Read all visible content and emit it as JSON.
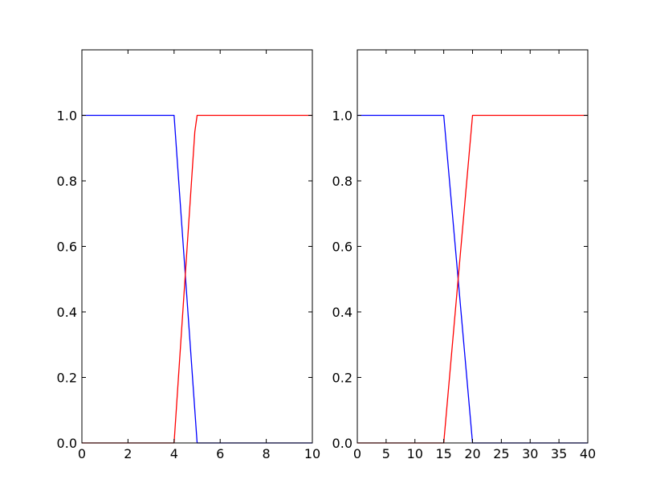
{
  "chart_data": [
    {
      "type": "line",
      "xlim": [
        0,
        10
      ],
      "ylim": [
        0,
        1.2
      ],
      "xticks": [
        "0",
        "2",
        "4",
        "6",
        "8",
        "10"
      ],
      "xtick_values": [
        0,
        2,
        4,
        6,
        8,
        10
      ],
      "yticks": [
        "0.0",
        "0.2",
        "0.4",
        "0.6",
        "0.8",
        "1.0"
      ],
      "ytick_values": [
        0,
        0.2,
        0.4,
        0.6,
        0.8,
        1.0
      ],
      "grid": false,
      "series": [
        {
          "color": "#0000ff",
          "x": [
            0,
            4,
            5,
            10
          ],
          "y": [
            1,
            1,
            0,
            0
          ]
        },
        {
          "color": "#ff0000",
          "x": [
            0,
            4,
            4.9,
            5,
            10
          ],
          "y": [
            0,
            0,
            0.95,
            1,
            1
          ]
        }
      ]
    },
    {
      "type": "line",
      "xlim": [
        0,
        40
      ],
      "ylim": [
        0,
        1.2
      ],
      "xticks": [
        "0",
        "5",
        "10",
        "15",
        "20",
        "25",
        "30",
        "35",
        "40"
      ],
      "xtick_values": [
        0,
        5,
        10,
        15,
        20,
        25,
        30,
        35,
        40
      ],
      "yticks": [
        "0.0",
        "0.2",
        "0.4",
        "0.6",
        "0.8",
        "1.0"
      ],
      "ytick_values": [
        0,
        0.2,
        0.4,
        0.6,
        0.8,
        1.0
      ],
      "grid": false,
      "series": [
        {
          "color": "#0000ff",
          "x": [
            0,
            15,
            20,
            40
          ],
          "y": [
            1,
            1,
            0,
            0
          ]
        },
        {
          "color": "#ff0000",
          "x": [
            0,
            15,
            20,
            40
          ],
          "y": [
            0,
            0,
            1,
            1
          ]
        }
      ]
    }
  ]
}
